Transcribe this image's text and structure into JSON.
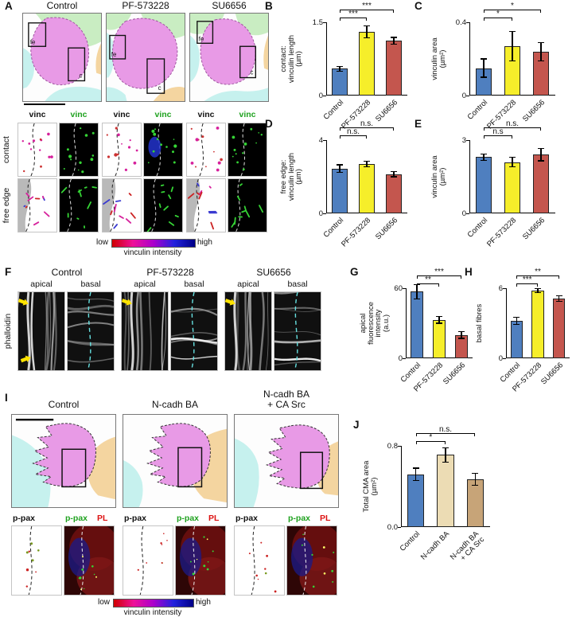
{
  "colors": {
    "bar_blue": "#4f7fbf",
    "bar_yellow": "#f6ee2a",
    "bar_red": "#c4564e",
    "bar_wheat": "#ecdcb4",
    "bar_tan": "#c7a478",
    "cell_magenta": "#e89ae6",
    "patch_green": "#c9edc2",
    "patch_cyan": "#c6f1ee",
    "patch_orange": "#f4d5a0",
    "vinc_green": "#1fa21f",
    "pl_red": "#dd1111",
    "gradient_low_high": [
      "#cf0000",
      "#ee1199",
      "#aa00cc",
      "#2222dd",
      "#000088"
    ]
  },
  "panelA": {
    "label": "A",
    "titles": [
      "Control",
      "PF-573228",
      "SU6656"
    ],
    "roi_fe": "fe",
    "roi_c": "c",
    "vinc_black": "vinc",
    "vinc_green": "vinc",
    "row_labels": [
      "contact",
      "free edge"
    ],
    "colorbar": {
      "low": "low",
      "high": "high",
      "title": "vinculin intensity"
    }
  },
  "panelF": {
    "label": "F",
    "titles": [
      "Control",
      "PF-573228",
      "SU6656"
    ],
    "sub_labels": [
      "apical",
      "basal"
    ],
    "side_label": "phalloidin"
  },
  "panelI": {
    "label": "I",
    "titles": [
      "Control",
      "N-cadh BA",
      "N-cadh BA\n+ CA Src"
    ],
    "img_label_ppax": "p-pax",
    "img_label_ppax_green": "p-pax",
    "img_label_pl": "PL",
    "colorbar": {
      "low": "low",
      "high": "high",
      "title": "vinculin intensity"
    }
  },
  "charts": {
    "B": {
      "label": "B",
      "type": "bar",
      "ylabel": "contact:\nvinculin length\n(µm)",
      "ylim": [
        0,
        1.5
      ],
      "yticks": [
        {
          "v": 0,
          "t": "0"
        },
        {
          "v": 1.5,
          "t": "1.5"
        }
      ],
      "categories": [
        "Control",
        "PF-573228",
        "SU6656"
      ],
      "values": [
        0.55,
        1.3,
        1.12
      ],
      "errors": [
        0.05,
        0.12,
        0.07
      ],
      "colors": [
        "#4f7fbf",
        "#f6ee2a",
        "#c4564e"
      ],
      "significance": [
        {
          "from": 0,
          "to": 1,
          "label": "***"
        },
        {
          "from": 0,
          "to": 2,
          "label": "***"
        }
      ]
    },
    "C": {
      "label": "C",
      "type": "bar",
      "ylabel": "vinculin area\n(µm²)",
      "ylim": [
        0,
        0.4
      ],
      "yticks": [
        {
          "v": 0,
          "t": "0"
        },
        {
          "v": 0.4,
          "t": "0.4"
        }
      ],
      "categories": [
        "Control",
        "PF-573228",
        "SU6656"
      ],
      "values": [
        0.15,
        0.27,
        0.24
      ],
      "errors": [
        0.05,
        0.08,
        0.05
      ],
      "colors": [
        "#4f7fbf",
        "#f6ee2a",
        "#c4564e"
      ],
      "significance": [
        {
          "from": 0,
          "to": 1,
          "label": "*"
        },
        {
          "from": 0,
          "to": 2,
          "label": "*"
        }
      ]
    },
    "D": {
      "label": "D",
      "type": "bar",
      "ylabel": "free edge:\nvinculin length\n(µm)",
      "ylim": [
        0,
        4
      ],
      "yticks": [
        {
          "v": 0,
          "t": "0"
        },
        {
          "v": 4,
          "t": "4"
        }
      ],
      "categories": [
        "Control",
        "PF-573228",
        "SU6656"
      ],
      "values": [
        2.45,
        2.7,
        2.15
      ],
      "errors": [
        0.2,
        0.15,
        0.15
      ],
      "colors": [
        "#4f7fbf",
        "#f6ee2a",
        "#c4564e"
      ],
      "significance": [
        {
          "from": 0,
          "to": 1,
          "label": "n.s."
        },
        {
          "from": 0,
          "to": 2,
          "label": "n.s."
        }
      ]
    },
    "E": {
      "label": "E",
      "type": "bar",
      "ylabel": "vinculin area\n(µm²)",
      "ylim": [
        0,
        3
      ],
      "yticks": [
        {
          "v": 0,
          "t": "0"
        },
        {
          "v": 3,
          "t": "3"
        }
      ],
      "categories": [
        "Control",
        "PF-573228",
        "SU6656"
      ],
      "values": [
        2.3,
        2.1,
        2.4
      ],
      "errors": [
        0.12,
        0.2,
        0.25
      ],
      "colors": [
        "#4f7fbf",
        "#f6ee2a",
        "#c4564e"
      ],
      "significance": [
        {
          "from": 0,
          "to": 1,
          "label": "n.s"
        },
        {
          "from": 0,
          "to": 2,
          "label": "n.s."
        }
      ]
    },
    "G": {
      "label": "G",
      "type": "bar",
      "ylabel": "apical\nfluorescence intensity\n(a.u.)",
      "ylim": [
        0,
        60
      ],
      "yticks": [
        {
          "v": 0,
          "t": "0"
        },
        {
          "v": 60,
          "t": "60"
        }
      ],
      "categories": [
        "Control",
        "PF-573228",
        "SU6656"
      ],
      "values": [
        57,
        33,
        20
      ],
      "errors": [
        6,
        3,
        3
      ],
      "colors": [
        "#4f7fbf",
        "#f6ee2a",
        "#c4564e"
      ],
      "significance": [
        {
          "from": 0,
          "to": 1,
          "label": "**"
        },
        {
          "from": 0,
          "to": 2,
          "label": "***"
        }
      ]
    },
    "H": {
      "label": "H",
      "type": "bar",
      "ylabel": "basal fibres",
      "ylim": [
        0,
        6
      ],
      "yticks": [
        {
          "v": 0,
          "t": "0"
        },
        {
          "v": 6,
          "t": "6"
        }
      ],
      "categories": [
        "Control",
        "PF-573228",
        "SU6656"
      ],
      "values": [
        3.2,
        5.8,
        5.1
      ],
      "errors": [
        0.3,
        0.15,
        0.25
      ],
      "colors": [
        "#4f7fbf",
        "#f6ee2a",
        "#c4564e"
      ],
      "significance": [
        {
          "from": 0,
          "to": 1,
          "label": "***"
        },
        {
          "from": 0,
          "to": 2,
          "label": "**"
        }
      ]
    },
    "J": {
      "label": "J",
      "type": "bar",
      "ylabel": "Total CMA area\n(µm²)",
      "ylim": [
        0,
        0.8
      ],
      "yticks": [
        {
          "v": 0,
          "t": "0.0"
        },
        {
          "v": 0.8,
          "t": "0.8"
        }
      ],
      "categories": [
        "Control",
        "N-cadh BA",
        "N-cadh BA\n+ CA Src"
      ],
      "values": [
        0.52,
        0.71,
        0.47
      ],
      "errors": [
        0.06,
        0.07,
        0.06
      ],
      "colors": [
        "#4f7fbf",
        "#ecdcb4",
        "#c7a478"
      ],
      "significance": [
        {
          "from": 0,
          "to": 1,
          "label": "*"
        },
        {
          "from": 0,
          "to": 2,
          "label": "n.s."
        }
      ]
    }
  }
}
